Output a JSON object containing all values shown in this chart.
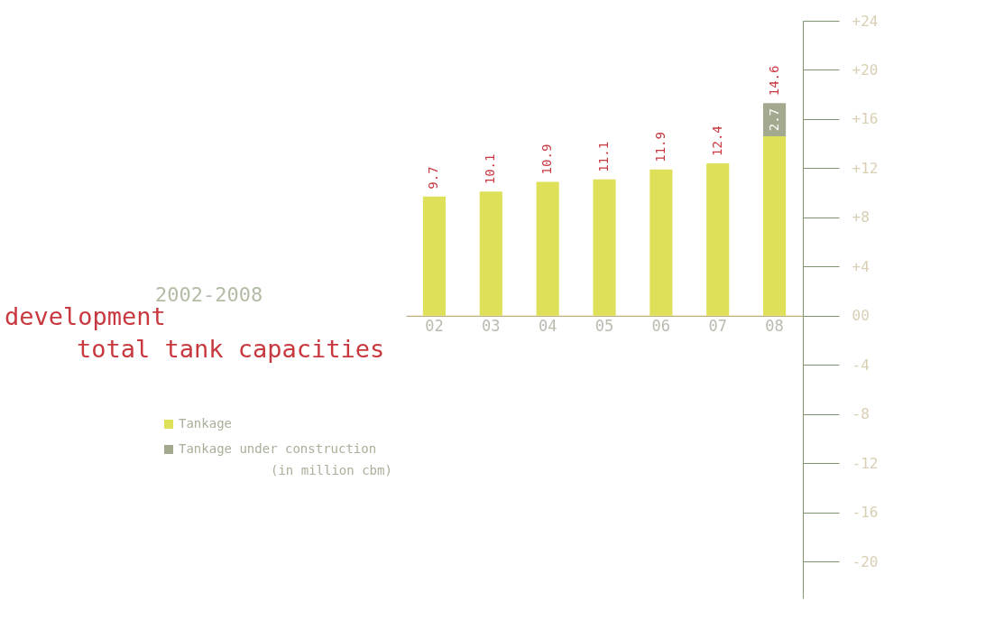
{
  "chart_data": {
    "type": "bar",
    "title": "development total tank capacities",
    "subtitle": "2002-2008",
    "categories": [
      "02",
      "03",
      "04",
      "05",
      "06",
      "07",
      "08"
    ],
    "stacked": true,
    "series": [
      {
        "name": "Tankage",
        "color": "#dfe05a",
        "values": [
          9.7,
          10.1,
          10.9,
          11.1,
          11.9,
          12.4,
          14.6
        ]
      },
      {
        "name": "Tankage under construction",
        "color": "#a3a98f",
        "values": [
          null,
          null,
          null,
          null,
          null,
          null,
          2.7
        ]
      }
    ],
    "ylim": [
      -23,
      24
    ],
    "yticks": [
      {
        "value": 24,
        "label": "+24"
      },
      {
        "value": 20,
        "label": "+20"
      },
      {
        "value": 16,
        "label": "+16"
      },
      {
        "value": 12,
        "label": "+12"
      },
      {
        "value": 8,
        "label": "+8"
      },
      {
        "value": 4,
        "label": "+4"
      },
      {
        "value": 0,
        "label": "00"
      },
      -4,
      -8,
      -12,
      -16,
      -20
    ],
    "data_labels": true,
    "legend": "left",
    "grid": false,
    "annotations": [
      "(in million cbm)"
    ]
  }
}
